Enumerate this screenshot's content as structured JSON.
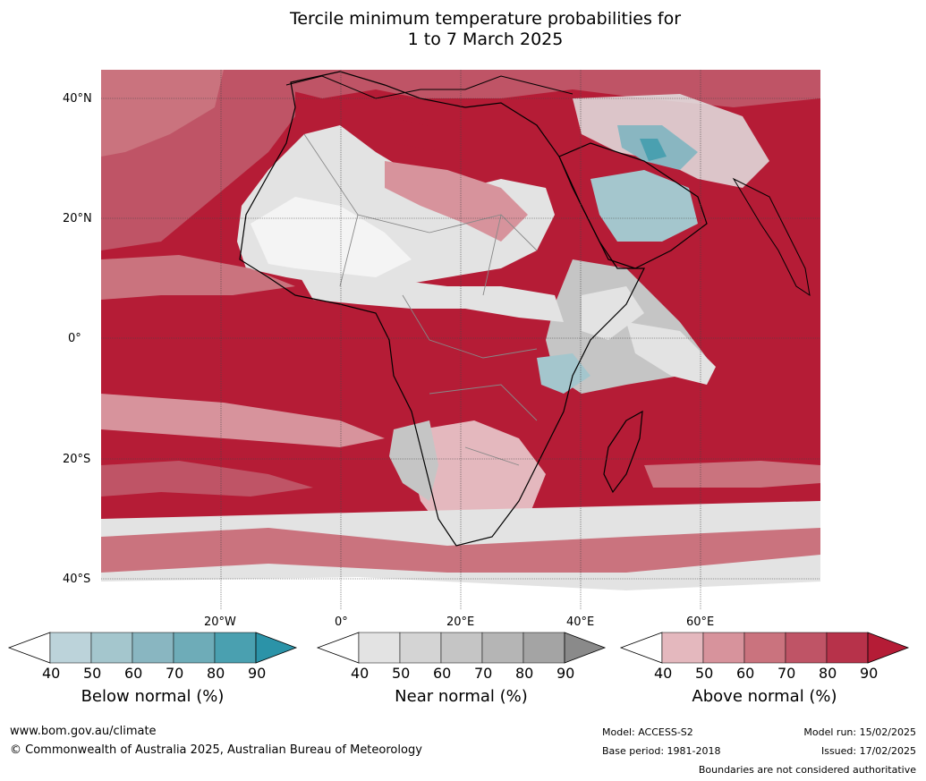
{
  "title_line1": "Tercile minimum temperature probabilities for",
  "title_line2": "1 to 7 March 2025",
  "lat_labels": [
    "40°N",
    "20°N",
    "0°",
    "20°S",
    "40°S"
  ],
  "lon_labels": [
    "20°W",
    "0°",
    "20°E",
    "40°E",
    "60°E"
  ],
  "colorbars": [
    {
      "title": "Below normal (%)",
      "ticks": [
        "40",
        "50",
        "60",
        "70",
        "80",
        "90"
      ],
      "colors": [
        "#bcd3da",
        "#a4c6cd",
        "#89b6c1",
        "#6eacb8",
        "#4aa0b0",
        "#2b93a8"
      ]
    },
    {
      "title": "Near normal (%)",
      "ticks": [
        "40",
        "50",
        "60",
        "70",
        "80",
        "90"
      ],
      "colors": [
        "#e3e3e3",
        "#d4d4d4",
        "#c5c5c5",
        "#b5b5b5",
        "#a4a4a4",
        "#8a8a8a"
      ]
    },
    {
      "title": "Above normal (%)",
      "ticks": [
        "40",
        "50",
        "60",
        "70",
        "80",
        "90"
      ],
      "colors": [
        "#e4b8be",
        "#d7939c",
        "#ca737e",
        "#bf5466",
        "#b7324a",
        "#b51c36"
      ]
    }
  ],
  "footer": {
    "website": "www.bom.gov.au/climate",
    "copyright": "© Commonwealth of Australia 2025, Australian Bureau of Meteorology",
    "model": "Model: ACCESS-S2",
    "base_period": "Base period: 1981-2018",
    "model_run": "Model run: 15/02/2025",
    "issued": "Issued: 17/02/2025",
    "disclaimer": "Boundaries are not considered authoritative"
  },
  "colors": {
    "above_strong": "#b51c36",
    "above_mid": "#ca737e",
    "above_light": "#e4b8be",
    "near_light": "#e3e3e3",
    "near_mid": "#c5c5c5",
    "below_light": "#bcd3da",
    "below_mid": "#6eacb8"
  }
}
